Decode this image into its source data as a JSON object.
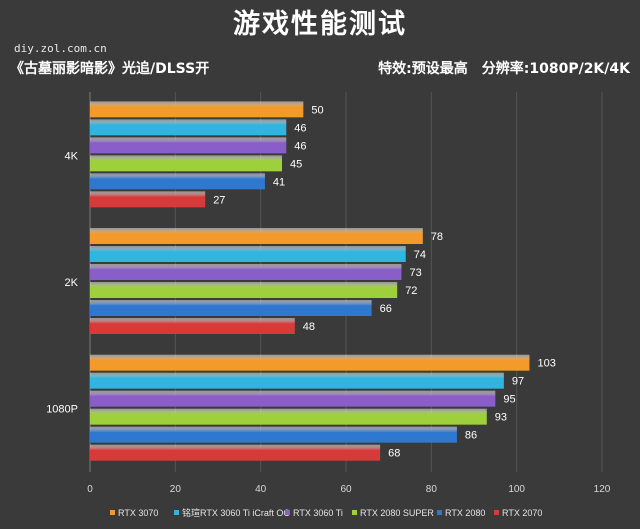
{
  "header": {
    "title": "游戏性能测试",
    "watermark": "diy.zol.com.cn",
    "subtitle_left": "《古墓丽影暗影》光追/DLSS开",
    "subtitle_right": "特效:预设最高　分辨率:1080P/2K/4K"
  },
  "chart_data": {
    "type": "bar",
    "orientation": "horizontal",
    "categories": [
      "4K",
      "2K",
      "1080P"
    ],
    "series": [
      {
        "name": "RTX 3070",
        "color": "#f39a2a",
        "values": [
          50,
          78,
          103
        ]
      },
      {
        "name": "铭瑄RTX 3060 Ti iCraft OC",
        "color": "#2fb5e0",
        "values": [
          46,
          74,
          97
        ]
      },
      {
        "name": "RTX 3060 Ti",
        "color": "#8a5ec8",
        "values": [
          46,
          73,
          95
        ]
      },
      {
        "name": "RTX 2080 SUPER",
        "color": "#9ed03b",
        "values": [
          45,
          72,
          93
        ]
      },
      {
        "name": "RTX 2080",
        "color": "#2f78d0",
        "values": [
          41,
          66,
          86
        ]
      },
      {
        "name": "RTX 2070",
        "color": "#d83a3a",
        "values": [
          27,
          48,
          68
        ]
      }
    ],
    "xlim": [
      0,
      120
    ],
    "xticks": [
      0,
      20,
      40,
      60,
      80,
      100,
      120
    ],
    "grid": true,
    "legend": "bottom"
  }
}
